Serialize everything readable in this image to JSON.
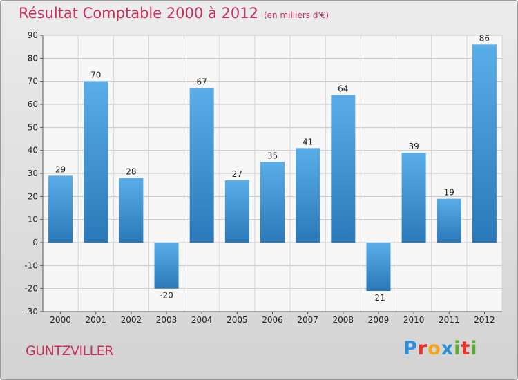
{
  "chart_data": {
    "type": "bar",
    "title": "Résultat Comptable 2000 à 2012",
    "subtitle": "(en milliers d'€)",
    "categories": [
      "2000",
      "2001",
      "2002",
      "2003",
      "2004",
      "2005",
      "2006",
      "2007",
      "2008",
      "2009",
      "2010",
      "2011",
      "2012"
    ],
    "values": [
      29,
      70,
      28,
      -20,
      67,
      27,
      35,
      41,
      64,
      -21,
      39,
      19,
      86
    ],
    "ylim": [
      -30,
      90
    ],
    "yticks": [
      -30,
      -20,
      -10,
      0,
      10,
      20,
      30,
      40,
      50,
      60,
      70,
      80,
      90
    ],
    "grid": true,
    "bar_color_top": "#5aaee8",
    "bar_color_bottom": "#2a78b8"
  },
  "location": "GUNTZVILLER",
  "brand": {
    "name": "Proxiti",
    "letters": [
      "P",
      "r",
      "o",
      "x",
      "i",
      "t",
      "i"
    ],
    "letter_colors": [
      "#2c8ed6",
      "#e8332a",
      "#f2a51a",
      "#2c8ed6",
      "#5cb030",
      "#e8332a",
      "#5cb030"
    ]
  }
}
